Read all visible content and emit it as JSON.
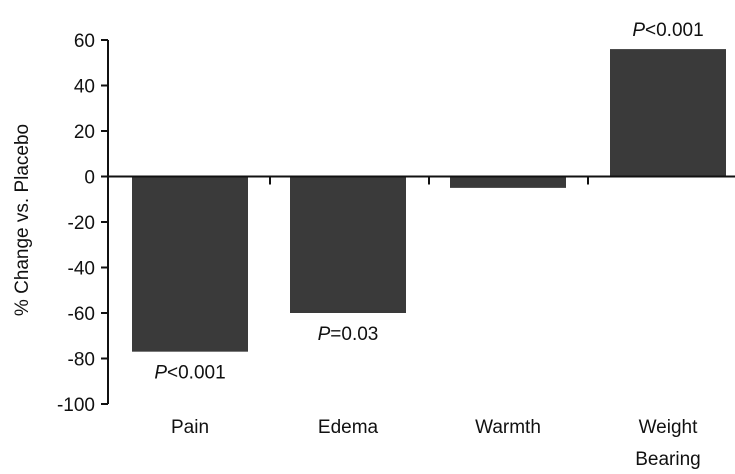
{
  "chart_data": {
    "type": "bar",
    "categories": [
      "Pain",
      "Edema",
      "Warmth",
      "Weight Bearing"
    ],
    "category_lines": [
      [
        "Pain"
      ],
      [
        "Edema"
      ],
      [
        "Warmth"
      ],
      [
        "Weight",
        "Bearing"
      ]
    ],
    "values": [
      -77,
      -60,
      -5,
      56
    ],
    "ylabel": "% Change vs. Placebo",
    "ylim": [
      -100,
      60
    ],
    "yticks": [
      60,
      40,
      20,
      0,
      -20,
      -40,
      -60,
      -80,
      -100
    ],
    "annotations": [
      {
        "category": "Pain",
        "italic": "P",
        "rest": "<0.001"
      },
      {
        "category": "Edema",
        "italic": "P",
        "rest": "=0.03"
      },
      {
        "category": "Weight Bearing",
        "italic": "P",
        "rest": "<0.001"
      }
    ],
    "bar_color": "#3a3a3a",
    "grid": false
  }
}
